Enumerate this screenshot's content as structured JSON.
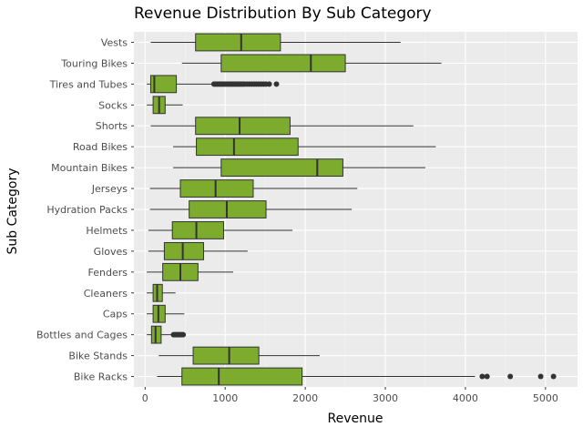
{
  "chart_data": {
    "type": "boxplot",
    "orientation": "horizontal",
    "title": "Revenue Distribution By Sub Category",
    "xlabel": "Revenue",
    "ylabel": "Sub Category",
    "xlim": [
      -140,
      5400
    ],
    "xticks": [
      0,
      1000,
      2000,
      3000,
      4000,
      5000
    ],
    "grid": true,
    "legend": "none",
    "colors": {
      "box_fill": "#7cab2e",
      "box_edge": "#333333",
      "panel_bg": "#ebebeb",
      "grid_major": "#ffffff",
      "outlier": "#333333"
    },
    "categories": [
      "Vests",
      "Touring Bikes",
      "Tires and Tubes",
      "Socks",
      "Shorts",
      "Road Bikes",
      "Mountain Bikes",
      "Jerseys",
      "Hydration Packs",
      "Helmets",
      "Gloves",
      "Fenders",
      "Cleaners",
      "Caps",
      "Bottles and Cages",
      "Bike Stands",
      "Bike Racks"
    ],
    "boxes": [
      {
        "category": "Vests",
        "min": 70,
        "q1": 630,
        "median": 1200,
        "q3": 1690,
        "max": 3190,
        "outliers": []
      },
      {
        "category": "Touring Bikes",
        "min": 460,
        "q1": 950,
        "median": 2070,
        "q3": 2500,
        "max": 3700,
        "outliers": []
      },
      {
        "category": "Tires and Tubes",
        "min": 20,
        "q1": 70,
        "median": 115,
        "q3": 390,
        "max": 840,
        "outliers": [
          860,
          880,
          900,
          920,
          940,
          960,
          980,
          1000,
          1020,
          1040,
          1060,
          1080,
          1100,
          1120,
          1140,
          1160,
          1180,
          1200,
          1220,
          1240,
          1270,
          1300,
          1330,
          1360,
          1390,
          1420,
          1450,
          1480,
          1510,
          1550,
          1640
        ]
      },
      {
        "category": "Socks",
        "min": 20,
        "q1": 100,
        "median": 175,
        "q3": 250,
        "max": 470,
        "outliers": []
      },
      {
        "category": "Shorts",
        "min": 70,
        "q1": 630,
        "median": 1180,
        "q3": 1810,
        "max": 3350,
        "outliers": []
      },
      {
        "category": "Road Bikes",
        "min": 350,
        "q1": 640,
        "median": 1110,
        "q3": 1910,
        "max": 3630,
        "outliers": []
      },
      {
        "category": "Mountain Bikes",
        "min": 350,
        "q1": 950,
        "median": 2150,
        "q3": 2470,
        "max": 3500,
        "outliers": []
      },
      {
        "category": "Jerseys",
        "min": 60,
        "q1": 440,
        "median": 880,
        "q3": 1350,
        "max": 2650,
        "outliers": []
      },
      {
        "category": "Hydration Packs",
        "min": 60,
        "q1": 550,
        "median": 1020,
        "q3": 1510,
        "max": 2580,
        "outliers": []
      },
      {
        "category": "Helmets",
        "min": 40,
        "q1": 340,
        "median": 640,
        "q3": 980,
        "max": 1840,
        "outliers": []
      },
      {
        "category": "Gloves",
        "min": 40,
        "q1": 240,
        "median": 470,
        "q3": 730,
        "max": 1280,
        "outliers": []
      },
      {
        "category": "Fenders",
        "min": 20,
        "q1": 220,
        "median": 440,
        "q3": 660,
        "max": 1100,
        "outliers": []
      },
      {
        "category": "Cleaners",
        "min": 20,
        "q1": 100,
        "median": 150,
        "q3": 215,
        "max": 380,
        "outliers": []
      },
      {
        "category": "Caps",
        "min": 20,
        "q1": 100,
        "median": 165,
        "q3": 250,
        "max": 490,
        "outliers": []
      },
      {
        "category": "Bottles and Cages",
        "min": 20,
        "q1": 80,
        "median": 130,
        "q3": 200,
        "max": 340,
        "outliers": [
          355,
          370,
          385,
          400,
          415,
          430,
          445,
          460,
          475
        ]
      },
      {
        "category": "Bike Stands",
        "min": 170,
        "q1": 600,
        "median": 1050,
        "q3": 1420,
        "max": 2180,
        "outliers": []
      },
      {
        "category": "Bike Racks",
        "min": 150,
        "q1": 460,
        "median": 920,
        "q3": 1960,
        "max": 4120,
        "outliers": [
          4210,
          4270,
          4560,
          4940,
          5100
        ]
      }
    ]
  }
}
